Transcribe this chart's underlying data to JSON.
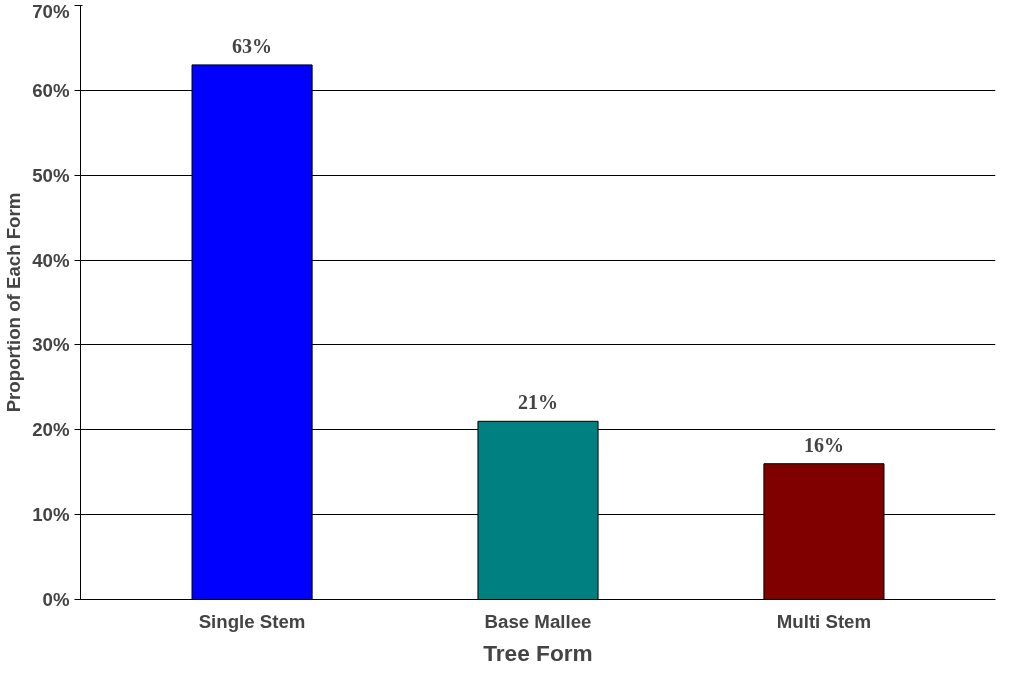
{
  "chart_data": {
    "type": "bar",
    "xlabel": "Tree Form",
    "ylabel": "Proportion of Each Form",
    "categories": [
      "Single Stem",
      "Base Mallee",
      "Multi Stem"
    ],
    "values": [
      63,
      21,
      16
    ],
    "colors": [
      "#0000ff",
      "#008080",
      "#800000"
    ],
    "value_labels": [
      "63%",
      "21%",
      "16%"
    ],
    "ylim": [
      0,
      70
    ],
    "yticks": [
      {
        "value": 0,
        "label": "0%"
      },
      {
        "value": 10,
        "label": "10%"
      },
      {
        "value": 20,
        "label": "20%"
      },
      {
        "value": 30,
        "label": "30%"
      },
      {
        "value": 40,
        "label": "40%"
      },
      {
        "value": 50,
        "label": "50%"
      },
      {
        "value": 60,
        "label": "60%"
      },
      {
        "value": 70,
        "label": "70%"
      }
    ],
    "grid": "y"
  }
}
